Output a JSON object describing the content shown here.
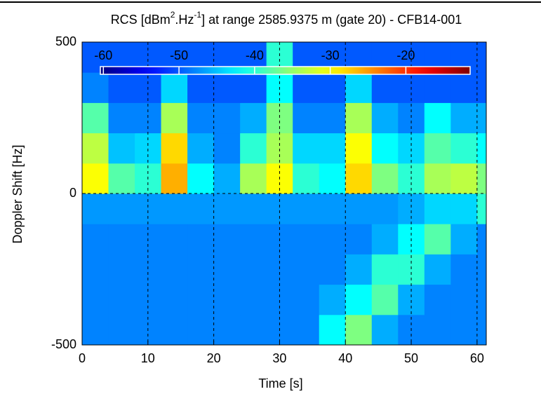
{
  "chart_data": {
    "type": "heatmap",
    "title": [
      "RCS [dBm",
      "2",
      ".Hz",
      "-1",
      "] at range 2585.9375 m (gate 20) - CFB14-001"
    ],
    "x_label": "Time [s]",
    "y_label": "Doppler Shift [Hz]",
    "xlim": [
      0,
      61.4
    ],
    "ylim": [
      -500,
      500
    ],
    "xticks": [
      0,
      10,
      20,
      30,
      40,
      50,
      60
    ],
    "yticks": [
      -500,
      0,
      500
    ],
    "x_edges": [
      0,
      4,
      8,
      12,
      16,
      20,
      24,
      28,
      32,
      36,
      40,
      44,
      48,
      52,
      56,
      60,
      61.4
    ],
    "y_edges": [
      -500,
      -400,
      -300,
      -200,
      -100,
      0,
      100,
      200,
      300,
      400,
      500
    ],
    "z": [
      [
        -48,
        -48,
        -48,
        -48,
        -48,
        -48,
        -48,
        -48,
        -48,
        -42,
        -36,
        -46,
        -48,
        -48,
        -48,
        -48
      ],
      [
        -48,
        -48,
        -48,
        -48,
        -48,
        -48,
        -48,
        -48,
        -48,
        -46,
        -42,
        -38,
        -46,
        -48,
        -48,
        -48
      ],
      [
        -48,
        -48,
        -48,
        -48,
        -48,
        -48,
        -48,
        -48,
        -48,
        -48,
        -46,
        -40,
        -40,
        -46,
        -48,
        -48
      ],
      [
        -48,
        -48,
        -48,
        -48,
        -48,
        -48,
        -48,
        -48,
        -48,
        -48,
        -48,
        -46,
        -42,
        -38,
        -46,
        -48
      ],
      [
        -47,
        -47,
        -47,
        -47,
        -47,
        -47,
        -47,
        -47,
        -47,
        -47,
        -47,
        -47,
        -46,
        -44,
        -44,
        -40
      ],
      [
        -30,
        -38,
        -40,
        -26,
        -42,
        -46,
        -34,
        -30,
        -40,
        -42,
        -28,
        -36,
        -40,
        -34,
        -33,
        -36
      ],
      [
        -33,
        -45,
        -44,
        -28,
        -46,
        -48,
        -40,
        -34,
        -44,
        -44,
        -30,
        -42,
        -44,
        -38,
        -40,
        -42
      ],
      [
        -38,
        -48,
        -48,
        -34,
        -48,
        -48,
        -46,
        -36,
        -48,
        -48,
        -34,
        -46,
        -48,
        -42,
        -46,
        -46
      ],
      [
        -48,
        -50,
        -50,
        -44,
        -50,
        -50,
        -50,
        -42,
        -50,
        -50,
        -44,
        -50,
        -50,
        -50,
        -50,
        -50
      ],
      [
        -50,
        -50,
        -50,
        -50,
        -50,
        -50,
        -50,
        -40,
        -50,
        -50,
        -50,
        -50,
        -50,
        -50,
        -50,
        -50
      ]
    ],
    "colormap": "jet",
    "clim": [
      -60.4,
      -11.5
    ],
    "colorbar_ticks": [
      -60,
      -50,
      -40,
      -30,
      -20
    ],
    "grid": true
  }
}
